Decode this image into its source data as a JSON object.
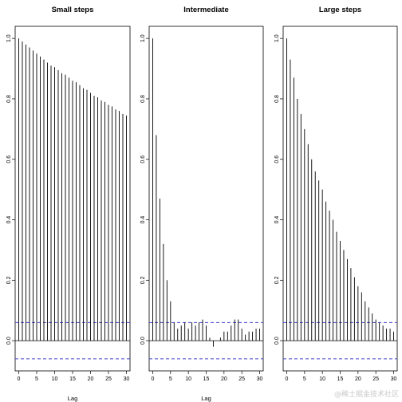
{
  "chart_data": [
    {
      "type": "bar",
      "subtype": "acf",
      "title": "Small steps",
      "xlabel": "Lag",
      "ylabel": "",
      "x": [
        0,
        1,
        2,
        3,
        4,
        5,
        6,
        7,
        8,
        9,
        10,
        11,
        12,
        13,
        14,
        15,
        16,
        17,
        18,
        19,
        20,
        21,
        22,
        23,
        24,
        25,
        26,
        27,
        28,
        29,
        30
      ],
      "values": [
        1.0,
        0.99,
        0.98,
        0.97,
        0.96,
        0.95,
        0.94,
        0.93,
        0.92,
        0.91,
        0.905,
        0.895,
        0.885,
        0.88,
        0.87,
        0.86,
        0.855,
        0.845,
        0.835,
        0.83,
        0.82,
        0.81,
        0.805,
        0.795,
        0.79,
        0.78,
        0.775,
        0.765,
        0.76,
        0.75,
        0.745
      ],
      "conf_band": [
        -0.06,
        0.06
      ],
      "xlim": [
        -1,
        31
      ],
      "ylim": [
        -0.1,
        1.04
      ],
      "xticks": [
        0,
        5,
        10,
        15,
        20,
        25,
        30
      ],
      "yticks": [
        0.0,
        0.2,
        0.4,
        0.6,
        0.8,
        1.0
      ],
      "yticklabels": [
        "0.0",
        "0.2",
        "0.4",
        "0.6",
        "0.8",
        "1.0"
      ],
      "colors": {
        "bars": "#000000",
        "band": "#4444cc"
      }
    },
    {
      "type": "bar",
      "subtype": "acf",
      "title": "Intermediate",
      "xlabel": "Lag",
      "ylabel": "",
      "x": [
        0,
        1,
        2,
        3,
        4,
        5,
        6,
        7,
        8,
        9,
        10,
        11,
        12,
        13,
        14,
        15,
        16,
        17,
        18,
        19,
        20,
        21,
        22,
        23,
        24,
        25,
        26,
        27,
        28,
        29,
        30
      ],
      "values": [
        1.0,
        0.68,
        0.47,
        0.32,
        0.2,
        0.13,
        0.06,
        0.04,
        0.05,
        0.06,
        0.04,
        0.06,
        0.05,
        0.06,
        0.07,
        0.05,
        0.01,
        -0.02,
        0.0,
        0.01,
        0.03,
        0.03,
        0.05,
        0.07,
        0.07,
        0.04,
        0.02,
        0.03,
        0.03,
        0.04,
        0.04
      ],
      "conf_band": [
        -0.06,
        0.06
      ],
      "xlim": [
        -1,
        31
      ],
      "ylim": [
        -0.1,
        1.04
      ],
      "xticks": [
        0,
        5,
        10,
        15,
        20,
        25,
        30
      ],
      "yticks": [
        0.0,
        0.2,
        0.4,
        0.6,
        0.8,
        1.0
      ],
      "yticklabels": [
        "0.0",
        "0.2",
        "0.4",
        "0.6",
        "0.8",
        "1.0"
      ],
      "colors": {
        "bars": "#000000",
        "band": "#4444cc"
      }
    },
    {
      "type": "bar",
      "subtype": "acf",
      "title": "Large steps",
      "xlabel": "",
      "ylabel": "",
      "x": [
        0,
        1,
        2,
        3,
        4,
        5,
        6,
        7,
        8,
        9,
        10,
        11,
        12,
        13,
        14,
        15,
        16,
        17,
        18,
        19,
        20,
        21,
        22,
        23,
        24,
        25,
        26,
        27,
        28,
        29,
        30
      ],
      "values": [
        1.0,
        0.93,
        0.87,
        0.8,
        0.75,
        0.7,
        0.65,
        0.6,
        0.56,
        0.53,
        0.5,
        0.46,
        0.43,
        0.4,
        0.36,
        0.33,
        0.3,
        0.27,
        0.24,
        0.21,
        0.18,
        0.16,
        0.13,
        0.11,
        0.09,
        0.07,
        0.06,
        0.05,
        0.04,
        0.04,
        0.03
      ],
      "conf_band": [
        -0.06,
        0.06
      ],
      "xlim": [
        -1,
        31
      ],
      "ylim": [
        -0.1,
        1.04
      ],
      "xticks": [
        0,
        5,
        10,
        15,
        20,
        25,
        30
      ],
      "yticks": [
        0.0,
        0.2,
        0.4,
        0.6,
        0.8,
        1.0
      ],
      "yticklabels": [
        "0.0",
        "0.2",
        "0.4",
        "0.6",
        "0.8",
        "1.0"
      ],
      "colors": {
        "bars": "#000000",
        "band": "#4444cc"
      }
    }
  ],
  "watermark": "@稀土掘金技术社区"
}
